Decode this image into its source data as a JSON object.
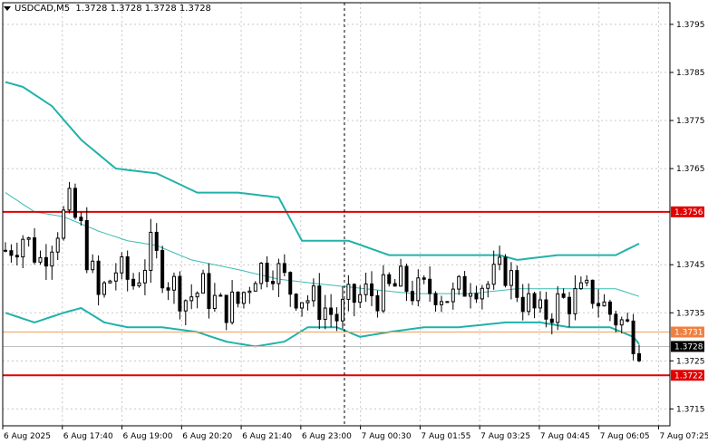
{
  "header": {
    "symbol": "USDCAD,M5",
    "ohlc": "1.3728 1.3728 1.3728 1.3728"
  },
  "colors": {
    "background": "#ffffff",
    "grid": "#c8c8c8",
    "candle": "#000000",
    "band": "#20b2aa",
    "middle_band": "#3cbcb4",
    "level_line": "#e00000",
    "bid_line": "#f0a060",
    "ask_line": "#c0c0c0",
    "level_badge": "#e00000",
    "bid_badge": "#f08040",
    "current_badge": "#000000"
  },
  "chart_data": {
    "type": "candlestick",
    "title": "USDCAD,M5",
    "ylim": [
      1.37115,
      1.37995
    ],
    "y_ticks": [
      "1.3795",
      "1.3785",
      "1.3775",
      "1.3765",
      "1.3745",
      "1.3735",
      "1.3725",
      "1.3715"
    ],
    "x_ticks": [
      "6 Aug 2025",
      "6 Aug 17:40",
      "6 Aug 19:00",
      "6 Aug 20:20",
      "6 Aug 21:40",
      "6 Aug 23:00",
      "7 Aug 00:30",
      "7 Aug 01:55",
      "7 Aug 03:25",
      "7 Aug 04:45",
      "7 Aug 06:05",
      "7 Aug 07:25"
    ],
    "grid": true,
    "bar_count": 110,
    "cursor_line_bar": 58,
    "levels": [
      {
        "value": 1.3756,
        "label": "1.3756"
      },
      {
        "value": 1.3722,
        "label": "1.3722"
      }
    ],
    "bid": {
      "value": 1.3731,
      "label": "1.3731"
    },
    "current": {
      "value": 1.3728,
      "label": "1.3728"
    },
    "close_anchors": [
      [
        0,
        1.3748
      ],
      [
        3,
        1.3751
      ],
      [
        6,
        1.3746
      ],
      [
        9,
        1.3753
      ],
      [
        11,
        1.3757
      ],
      [
        13,
        1.3752
      ],
      [
        16,
        1.3738
      ],
      [
        19,
        1.3744
      ],
      [
        22,
        1.3741
      ],
      [
        25,
        1.3748
      ],
      [
        28,
        1.3742
      ],
      [
        31,
        1.3738
      ],
      [
        34,
        1.374
      ],
      [
        37,
        1.3736
      ],
      [
        40,
        1.3737
      ],
      [
        43,
        1.3744
      ],
      [
        46,
        1.3745
      ],
      [
        49,
        1.374
      ],
      [
        52,
        1.3738
      ],
      [
        55,
        1.3736
      ],
      [
        57,
        1.3734
      ],
      [
        59,
        1.3737
      ],
      [
        62,
        1.3739
      ],
      [
        65,
        1.3739
      ],
      [
        68,
        1.3741
      ],
      [
        71,
        1.3739
      ],
      [
        74,
        1.374
      ],
      [
        77,
        1.3738
      ],
      [
        80,
        1.3742
      ],
      [
        83,
        1.3741
      ],
      [
        86,
        1.3744
      ],
      [
        89,
        1.3738
      ],
      [
        92,
        1.3734
      ],
      [
        95,
        1.3737
      ],
      [
        98,
        1.3738
      ],
      [
        101,
        1.3739
      ],
      [
        104,
        1.3735
      ],
      [
        107,
        1.3732
      ],
      [
        109,
        1.3729
      ]
    ],
    "bollinger_upper": [
      [
        0,
        1.3783
      ],
      [
        3,
        1.3782
      ],
      [
        8,
        1.3778
      ],
      [
        13,
        1.3771
      ],
      [
        19,
        1.3765
      ],
      [
        26,
        1.3764
      ],
      [
        33,
        1.376
      ],
      [
        40,
        1.376
      ],
      [
        47,
        1.3759
      ],
      [
        51,
        1.375
      ],
      [
        59,
        1.375
      ],
      [
        66,
        1.3747
      ],
      [
        72,
        1.3747
      ],
      [
        85,
        1.3747
      ],
      [
        88,
        1.3746
      ],
      [
        95,
        1.3747
      ],
      [
        105,
        1.3747
      ],
      [
        110,
        1.375
      ]
    ],
    "bollinger_middle": [
      [
        0,
        1.376
      ],
      [
        5,
        1.3756
      ],
      [
        10,
        1.3755
      ],
      [
        16,
        1.3752
      ],
      [
        21,
        1.375
      ],
      [
        26,
        1.3749
      ],
      [
        32,
        1.3746
      ],
      [
        40,
        1.3744
      ],
      [
        47,
        1.3742
      ],
      [
        54,
        1.3741
      ],
      [
        62,
        1.374
      ],
      [
        70,
        1.3739
      ],
      [
        80,
        1.3739
      ],
      [
        88,
        1.374
      ],
      [
        95,
        1.374
      ],
      [
        100,
        1.374
      ],
      [
        105,
        1.374
      ],
      [
        110,
        1.3738
      ]
    ],
    "bollinger_lower": [
      [
        0,
        1.3735
      ],
      [
        5,
        1.3733
      ],
      [
        10,
        1.3735
      ],
      [
        13,
        1.3736
      ],
      [
        17,
        1.3733
      ],
      [
        21,
        1.3732
      ],
      [
        27,
        1.3732
      ],
      [
        33,
        1.3731
      ],
      [
        38,
        1.3729
      ],
      [
        43,
        1.3728
      ],
      [
        48,
        1.3729
      ],
      [
        52,
        1.3732
      ],
      [
        57,
        1.3732
      ],
      [
        61,
        1.373
      ],
      [
        66,
        1.3731
      ],
      [
        72,
        1.3732
      ],
      [
        78,
        1.3732
      ],
      [
        86,
        1.3733
      ],
      [
        92,
        1.3733
      ],
      [
        97,
        1.3732
      ],
      [
        104,
        1.3732
      ],
      [
        108,
        1.373
      ],
      [
        110,
        1.3727
      ]
    ]
  }
}
